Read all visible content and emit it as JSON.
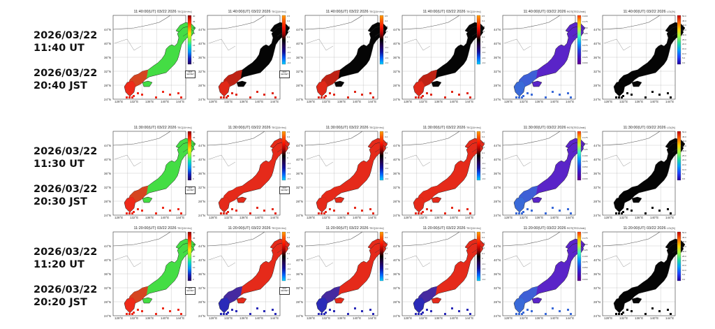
{
  "rows": [
    {
      "ut_date": "2026/03/22",
      "ut_time": "11:40 UT",
      "jst_date": "2026/03/22",
      "jst_time": "20:40 JST",
      "panels": [
        {
          "title": "11:40:00(UT) 03/22 2026",
          "cb_label": "TEC[10¹⁶/m²]",
          "scheme": "rainbow",
          "fill": "#44dd44",
          "south": "#ee2a1a",
          "logo": true
        },
        {
          "title": "11:40:00(UT) 03/22 2026",
          "cb_label": "TEC[10¹⁶/m²]",
          "scheme": "div",
          "fill": "#050505",
          "south": "#e02818",
          "logo": true
        },
        {
          "title": "11:40:00(UT) 03/22 2026",
          "cb_label": "TEC[10¹⁶/m²]",
          "scheme": "div",
          "fill": "#050505",
          "south": "#e02818",
          "logo": false
        },
        {
          "title": "11:40:00(UT) 03/22 2026",
          "cb_label": "TEC[10¹⁶/m²]",
          "scheme": "div",
          "fill": "#050505",
          "south": "#e02818",
          "logo": false
        },
        {
          "title": "11:40:00(UT) 03/22 2026",
          "cb_label": "ROTI[TECU/min]",
          "scheme": "roti",
          "fill": "#5a24c8",
          "south": "#3a6ad8",
          "logo": false
        },
        {
          "title": "11:40:00(UT) 03/22 2026",
          "cb_label": "LOL[%]",
          "scheme": "lol",
          "fill": "#050505",
          "south": "#050505",
          "logo": false
        }
      ]
    },
    {
      "ut_date": "2026/03/22",
      "ut_time": "11:30 UT",
      "jst_date": "2026/03/22",
      "jst_time": "20:30 JST",
      "panels": [
        {
          "title": "11:30:00(UT) 03/22 2026",
          "cb_label": "TEC[10¹⁶/m²]",
          "scheme": "rainbow",
          "fill": "#44dd44",
          "south": "#ee2a1a",
          "logo": true
        },
        {
          "title": "11:30:00(UT) 03/22 2026",
          "cb_label": "TEC[10¹⁶/m²]",
          "scheme": "div",
          "fill": "#e52a1a",
          "south": "#e52a1a",
          "logo": true
        },
        {
          "title": "11:30:00(UT) 03/22 2026",
          "cb_label": "TEC[10¹⁶/m²]",
          "scheme": "div",
          "fill": "#e52a1a",
          "south": "#e52a1a",
          "logo": false
        },
        {
          "title": "11:30:00(UT) 03/22 2026",
          "cb_label": "TEC[10¹⁶/m²]",
          "scheme": "div",
          "fill": "#e52a1a",
          "south": "#e52a1a",
          "logo": false
        },
        {
          "title": "11:30:00(UT) 03/22 2026",
          "cb_label": "ROTI[TECU/min]",
          "scheme": "roti",
          "fill": "#5a24c8",
          "south": "#3a6ad8",
          "logo": false
        },
        {
          "title": "11:30:00(UT) 03/22 2026",
          "cb_label": "LOL[%]",
          "scheme": "lol",
          "fill": "#050505",
          "south": "#050505",
          "logo": false
        }
      ]
    },
    {
      "ut_date": "2026/03/22",
      "ut_time": "11:20 UT",
      "jst_date": "2026/03/22",
      "jst_time": "20:20 JST",
      "panels": [
        {
          "title": "11:20:00(UT) 03/22 2026",
          "cb_label": "TEC[10¹⁶/m²]",
          "scheme": "rainbow",
          "fill": "#44dd44",
          "south": "#ee2a1a",
          "logo": true
        },
        {
          "title": "11:20:00(UT) 03/22 2026",
          "cb_label": "TEC[10¹⁶/m²]",
          "scheme": "div",
          "fill": "#e52a1a",
          "south": "#2a2ab8",
          "logo": true
        },
        {
          "title": "11:20:00(UT) 03/22 2026",
          "cb_label": "TEC[10¹⁶/m²]",
          "scheme": "div",
          "fill": "#e52a1a",
          "south": "#2a2ab8",
          "logo": false
        },
        {
          "title": "11:20:00(UT) 03/22 2026",
          "cb_label": "TEC[10¹⁶/m²]",
          "scheme": "div",
          "fill": "#e52a1a",
          "south": "#2a2ab8",
          "logo": false
        },
        {
          "title": "11:20:00(UT) 03/22 2026",
          "cb_label": "ROTI[TECU/min]",
          "scheme": "roti",
          "fill": "#5a24c8",
          "south": "#3a6ad8",
          "logo": false
        },
        {
          "title": "11:20:00(UT) 03/22 2026",
          "cb_label": "LOL[%]",
          "scheme": "lol",
          "fill": "#050505",
          "south": "#050505",
          "logo": false
        }
      ]
    }
  ],
  "lat_labels": [
    "44°N",
    "40°N",
    "36°N",
    "32°N",
    "28°N",
    "24°N"
  ],
  "lon_labels": [
    "128°E",
    "132°E",
    "136°E",
    "140°E",
    "144°E"
  ],
  "colorbar_ticks": {
    "rainbow": [
      "40",
      "35",
      "30",
      "25",
      "20",
      "15",
      "10",
      "5",
      "0"
    ],
    "div": [
      "0.5",
      "0.4",
      "0.3",
      "0.2",
      "0.1",
      "0",
      "-0.1",
      "-0.2",
      "-0.3",
      "-0.4"
    ],
    "roti": [
      "0.200",
      "0.175",
      "0.150",
      "0.125",
      "0.100",
      "0.075",
      "0.050",
      "0.025",
      "0.000"
    ],
    "lol": [
      "50.0",
      "45.0",
      "40.0",
      "35.0",
      "30.0",
      "25.0",
      "20.0",
      "15.0",
      "10.0",
      "5.0",
      "0.0"
    ]
  },
  "logo_text": [
    "NICT",
    "GEONET"
  ]
}
